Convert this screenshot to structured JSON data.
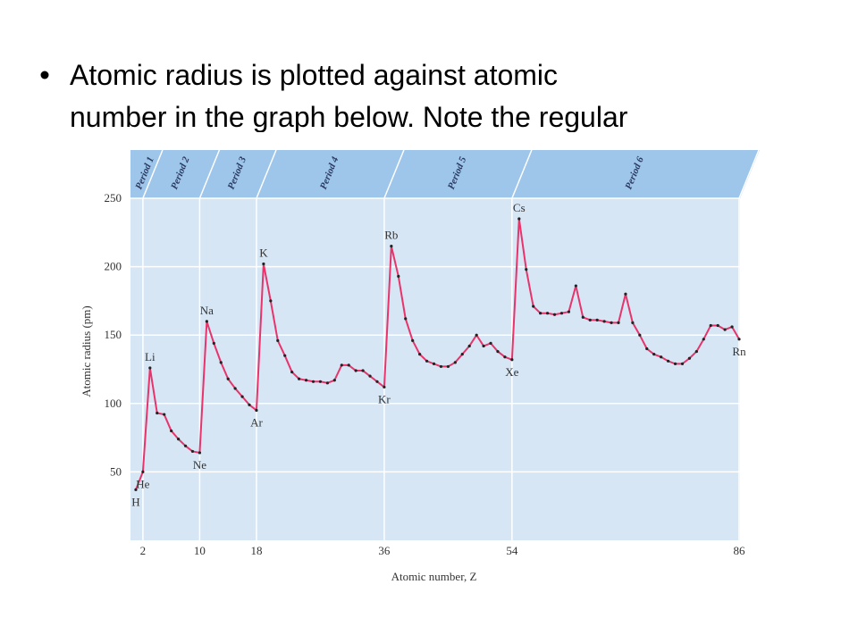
{
  "slide": {
    "bullet_lines": [
      "Atomic radius is plotted against atomic",
      "number in the graph below. Note the regular"
    ]
  },
  "chart_data": {
    "type": "line",
    "bands": [
      "Period 1",
      "Period 2",
      "Period 3",
      "Period 4",
      "Period 5",
      "Period 6"
    ],
    "x_label": "Atomic number, Z",
    "y_label": "Atomic radius (pm)",
    "x": [
      1,
      2,
      3,
      4,
      5,
      6,
      7,
      8,
      9,
      10,
      11,
      12,
      13,
      14,
      15,
      16,
      17,
      18,
      19,
      20,
      21,
      22,
      23,
      24,
      25,
      26,
      27,
      28,
      29,
      30,
      31,
      32,
      33,
      34,
      35,
      36,
      37,
      38,
      39,
      40,
      41,
      42,
      43,
      44,
      45,
      46,
      47,
      48,
      49,
      50,
      51,
      52,
      53,
      54,
      55,
      56,
      57,
      58,
      59,
      60,
      61,
      62,
      63,
      64,
      65,
      66,
      67,
      68,
      69,
      70,
      71,
      72,
      73,
      74,
      75,
      76,
      77,
      78,
      79,
      80,
      81,
      82,
      83,
      84,
      85,
      86
    ],
    "series": [
      {
        "name": "Atomic radius",
        "color": "#e8336b",
        "values": [
          37,
          50,
          126,
          93,
          92,
          80,
          74,
          69,
          65,
          64,
          160,
          144,
          130,
          118,
          111,
          105,
          99,
          95,
          202,
          175,
          146,
          135,
          123,
          118,
          117,
          116,
          116,
          115,
          117,
          128,
          128,
          124,
          124,
          120,
          116,
          112,
          215,
          193,
          162,
          146,
          136,
          131,
          129,
          127,
          127,
          130,
          136,
          142,
          150,
          142,
          144,
          138,
          134,
          132,
          235,
          198,
          171,
          166,
          166,
          165,
          166,
          167,
          186,
          163,
          161,
          161,
          160,
          159,
          159,
          180,
          159,
          150,
          140,
          136,
          134,
          131,
          129,
          129,
          133,
          138,
          147,
          157,
          157,
          154,
          156,
          147
        ],
        "point_labels": [
          "H",
          "He",
          "Li",
          null,
          null,
          null,
          null,
          null,
          null,
          "Ne",
          "Na",
          null,
          null,
          null,
          null,
          null,
          null,
          "Ar",
          "K",
          null,
          null,
          null,
          null,
          null,
          null,
          null,
          null,
          null,
          null,
          null,
          null,
          null,
          null,
          null,
          null,
          "Kr",
          "Rb",
          null,
          null,
          null,
          null,
          null,
          null,
          null,
          null,
          null,
          null,
          null,
          null,
          null,
          null,
          null,
          null,
          "Xe",
          "Cs",
          null,
          null,
          null,
          null,
          null,
          null,
          null,
          null,
          null,
          null,
          null,
          null,
          null,
          null,
          null,
          null,
          null,
          null,
          null,
          null,
          null,
          null,
          null,
          null,
          null,
          null,
          null,
          null,
          null,
          null,
          "Rn"
        ]
      }
    ],
    "xlim": [
      0,
      86
    ],
    "xticks": [
      2,
      10,
      18,
      36,
      54,
      86
    ],
    "ylim": [
      0,
      250
    ],
    "yticks": [
      50,
      100,
      150,
      200,
      250
    ],
    "grid": true
  }
}
